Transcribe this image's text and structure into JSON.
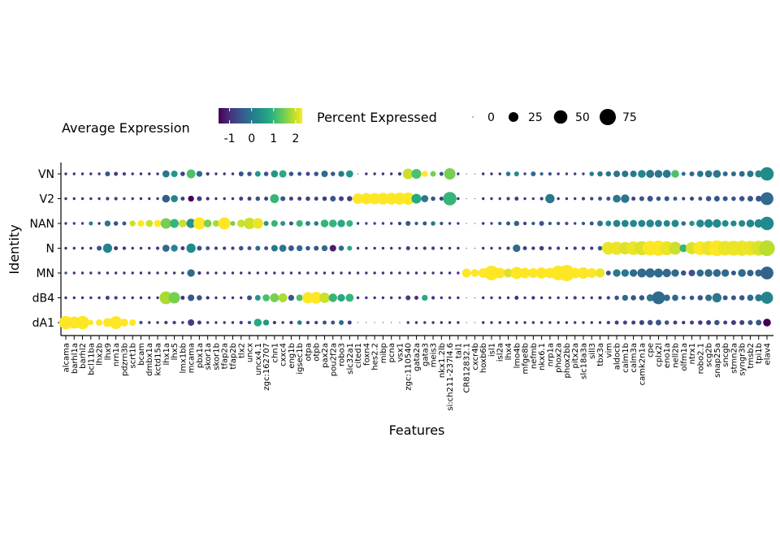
{
  "chart_data": {
    "type": "dotplot",
    "xlabel": "Features",
    "ylabel": "Identity",
    "legend_placement": "top",
    "color_legend": {
      "title": "Average Expression",
      "ticks": [
        "-1",
        "0",
        "1",
        "2"
      ],
      "tick_values": [
        -1,
        0,
        1,
        2
      ],
      "range": [
        -1.5,
        2.3
      ],
      "colors": [
        "#440154",
        "#472d7b",
        "#3b528b",
        "#2c728e",
        "#21918c",
        "#28ae80",
        "#5ec962",
        "#addc30",
        "#fde725"
      ]
    },
    "size_legend": {
      "title": "Percent Expressed",
      "ticks": [
        "0",
        "25",
        "50",
        "75"
      ],
      "tick_values": [
        0,
        25,
        50,
        75
      ]
    },
    "identities": [
      "VN",
      "V2",
      "NAN",
      "N",
      "MN",
      "dB4",
      "dA1"
    ],
    "features": [
      "alcama",
      "barhl1a",
      "barhl2",
      "bcl11ba",
      "lhx2b",
      "lhx9",
      "nrn1a",
      "pdzrn3b",
      "scrt1b",
      "bcam",
      "dmbx1a",
      "kctd15a",
      "lhx1a",
      "lhx5",
      "lmx1bb",
      "mcama",
      "pbx1a",
      "skor1a",
      "skor1b",
      "tfap2a",
      "tfap2b",
      "tlx2",
      "uncx",
      "uncx4.1",
      "zgc:162707",
      "chn1",
      "cxxc4",
      "eng1b",
      "igsec1b",
      "otpa",
      "otpb",
      "pax2a",
      "pou2f2a",
      "robo3",
      "slc32a1",
      "cited1",
      "foxn4",
      "hes2.2",
      "mibp",
      "pcna",
      "vsx1",
      "zgc:110540",
      "gata2a",
      "gata3",
      "meis3",
      "nkx1.2lb",
      "si:ch211-237l4.6",
      "tal1",
      "CR812832.1",
      "cxcr4b",
      "hoxb6b",
      "isl1",
      "isl2a",
      "lhx4",
      "lmo4b",
      "mfge8b",
      "nefmb",
      "nkx6.1",
      "nrp1a",
      "phox2a",
      "phox2bb",
      "pitx2a",
      "slc18a3a",
      "sill3",
      "tbx3a",
      "vim",
      "aldocb",
      "calm1b",
      "calm3a",
      "camk2n1a",
      "cpe",
      "cplx2l",
      "eno1a",
      "nell2b",
      "olfm1a",
      "ntrx1",
      "robo2.1",
      "scg2b",
      "snap25a",
      "sncgb",
      "stmn2a",
      "syngr3b",
      "tmsb2",
      "tpi1b",
      "elav4"
    ],
    "percent_expressed": {
      "VN": [
        1,
        1,
        1,
        1,
        1,
        5,
        3,
        2,
        1,
        1,
        1,
        1,
        12,
        10,
        4,
        20,
        8,
        2,
        1,
        1,
        1,
        5,
        4,
        7,
        4,
        12,
        13,
        4,
        3,
        3,
        4,
        10,
        4,
        8,
        12,
        0,
        1,
        1,
        1,
        1,
        2,
        30,
        25,
        8,
        7,
        3,
        35,
        1,
        0,
        0,
        1,
        1,
        1,
        4,
        5,
        1,
        5,
        2,
        2,
        1,
        1,
        1,
        1,
        4,
        6,
        6,
        10,
        10,
        10,
        15,
        16,
        15,
        16,
        15,
        3,
        5,
        9,
        12,
        15,
        5,
        5,
        7,
        10,
        12,
        50
      ],
      "V2": [
        1,
        1,
        1,
        1,
        1,
        2,
        2,
        1,
        1,
        1,
        1,
        1,
        15,
        12,
        3,
        8,
        5,
        2,
        1,
        1,
        1,
        3,
        3,
        4,
        3,
        20,
        5,
        3,
        3,
        4,
        3,
        4,
        7,
        5,
        6,
        30,
        35,
        35,
        38,
        38,
        40,
        42,
        25,
        12,
        4,
        3,
        50,
        1,
        0,
        0,
        1,
        1,
        1,
        2,
        3,
        1,
        1,
        2,
        22,
        1,
        1,
        1,
        2,
        2,
        3,
        3,
        15,
        18,
        3,
        5,
        7,
        4,
        5,
        3,
        2,
        3,
        3,
        6,
        7,
        5,
        4,
        6,
        7,
        8,
        45
      ],
      "NAN": [
        1,
        1,
        1,
        3,
        1,
        8,
        4,
        3,
        8,
        10,
        12,
        12,
        30,
        20,
        15,
        22,
        40,
        15,
        10,
        40,
        5,
        15,
        35,
        30,
        5,
        10,
        5,
        3,
        10,
        5,
        4,
        15,
        15,
        14,
        10,
        1,
        1,
        1,
        1,
        1,
        2,
        5,
        2,
        3,
        4,
        2,
        1,
        1,
        0,
        0,
        1,
        1,
        2,
        3,
        6,
        2,
        2,
        5,
        2,
        2,
        2,
        1,
        2,
        3,
        7,
        7,
        12,
        12,
        12,
        12,
        15,
        12,
        10,
        13,
        4,
        6,
        15,
        18,
        18,
        10,
        8,
        10,
        15,
        18,
        50
      ],
      "N": [
        1,
        1,
        1,
        1,
        5,
        22,
        3,
        2,
        1,
        1,
        1,
        2,
        12,
        11,
        3,
        22,
        5,
        3,
        2,
        2,
        2,
        4,
        3,
        5,
        3,
        10,
        12,
        7,
        8,
        4,
        5,
        8,
        10,
        6,
        5,
        1,
        1,
        1,
        1,
        1,
        1,
        3,
        1,
        2,
        2,
        1,
        1,
        1,
        0,
        0,
        1,
        1,
        1,
        2,
        14,
        3,
        2,
        4,
        2,
        2,
        1,
        2,
        2,
        2,
        4,
        45,
        48,
        42,
        52,
        55,
        60,
        65,
        55,
        45,
        15,
        40,
        52,
        58,
        70,
        60,
        62,
        65,
        60,
        62,
        70
      ],
      "MN": [
        1,
        1,
        1,
        1,
        1,
        1,
        1,
        1,
        1,
        1,
        1,
        1,
        1,
        1,
        1,
        14,
        2,
        1,
        1,
        1,
        1,
        1,
        1,
        1,
        1,
        1,
        1,
        1,
        1,
        1,
        1,
        1,
        1,
        1,
        1,
        1,
        1,
        1,
        1,
        1,
        1,
        1,
        1,
        1,
        1,
        1,
        1,
        1,
        20,
        15,
        24,
        60,
        30,
        20,
        40,
        30,
        25,
        35,
        28,
        60,
        75,
        30,
        36,
        25,
        22,
        5,
        14,
        14,
        14,
        20,
        22,
        20,
        18,
        14,
        6,
        10,
        12,
        15,
        15,
        14,
        5,
        15,
        10,
        12,
        45
      ],
      "dB4": [
        1,
        1,
        1,
        1,
        1,
        3,
        2,
        1,
        1,
        1,
        1,
        1,
        45,
        35,
        3,
        10,
        6,
        2,
        1,
        1,
        1,
        1,
        5,
        7,
        12,
        20,
        20,
        8,
        10,
        35,
        38,
        28,
        18,
        14,
        16,
        1,
        1,
        1,
        1,
        1,
        1,
        5,
        3,
        8,
        2,
        1,
        1,
        1,
        0,
        0,
        1,
        1,
        1,
        1,
        3,
        1,
        2,
        1,
        1,
        1,
        1,
        2,
        1,
        1,
        2,
        2,
        4,
        8,
        6,
        6,
        12,
        45,
        10,
        9,
        3,
        4,
        6,
        10,
        22,
        5,
        5,
        6,
        9,
        12,
        40
      ],
      "dA1": [
        50,
        40,
        50,
        6,
        10,
        20,
        45,
        15,
        10,
        2,
        1,
        1,
        2,
        2,
        1,
        10,
        3,
        1,
        1,
        1,
        1,
        2,
        2,
        15,
        8,
        2,
        1,
        2,
        4,
        2,
        2,
        3,
        3,
        5,
        3,
        0,
        0,
        0,
        0,
        0,
        0,
        1,
        1,
        1,
        1,
        1,
        1,
        1,
        0,
        0,
        1,
        1,
        1,
        1,
        1,
        1,
        1,
        1,
        1,
        1,
        1,
        1,
        1,
        1,
        1,
        2,
        3,
        3,
        3,
        5,
        6,
        7,
        4,
        3,
        2,
        3,
        4,
        5,
        6,
        3,
        5,
        5,
        5,
        7,
        15
      ]
    },
    "average_expression": {
      "VN": [
        -1,
        -1,
        -1,
        -1,
        -1,
        -0.5,
        -0.8,
        -0.8,
        -1,
        -1,
        -1,
        -1,
        0,
        0.5,
        -0.8,
        1.2,
        -0.2,
        -0.8,
        -1,
        -1,
        -1,
        -0.5,
        -0.5,
        0.5,
        -0.5,
        0.5,
        0.8,
        -0.5,
        -0.5,
        -0.7,
        -0.5,
        -0.2,
        -0.4,
        0,
        0.5,
        -1,
        -1,
        -1,
        -1,
        -1,
        -0.8,
        2.0,
        1.2,
        2.3,
        1.5,
        -0.5,
        1.5,
        -0.8,
        -1,
        -1,
        -1,
        -1,
        -1,
        0,
        0.3,
        -0.8,
        -0.2,
        -0.3,
        -0.5,
        -1,
        -0.8,
        -0.8,
        -0.8,
        0,
        0,
        0,
        0,
        0,
        0,
        0.2,
        0,
        0,
        0,
        1.2,
        -0.2,
        -0.2,
        0,
        0,
        0,
        -0.2,
        -0.2,
        -0.2,
        0,
        0.2,
        0.3
      ],
      "V2": [
        -1,
        -1,
        -1,
        -1,
        -1,
        -0.8,
        -0.8,
        -0.8,
        -1,
        -1,
        -1,
        -1,
        -0.4,
        0.2,
        -0.8,
        -1.5,
        -0.8,
        -1,
        -1,
        -1,
        -1,
        -0.8,
        -0.8,
        -0.5,
        -0.8,
        1.0,
        -0.5,
        -0.8,
        -0.8,
        -0.7,
        -0.8,
        -0.8,
        -0.5,
        -0.8,
        -0.8,
        2.3,
        2.3,
        2.3,
        2.3,
        2.3,
        2.3,
        2.3,
        0.8,
        0,
        -0.5,
        -0.8,
        1.0,
        -1,
        -1,
        -1,
        -1,
        -1,
        -1,
        -0.8,
        -0.8,
        -1,
        -0.8,
        -0.8,
        0,
        -1,
        -1,
        -1,
        -0.8,
        -0.8,
        -0.5,
        -0.5,
        0,
        0,
        -0.8,
        -0.5,
        -0.5,
        -0.5,
        -0.5,
        -0.5,
        -0.8,
        -0.8,
        -0.5,
        -0.5,
        -0.5,
        -0.5,
        -0.5,
        -0.5,
        -0.5,
        -0.5,
        -0.2
      ],
      "NAN": [
        -0.8,
        -0.8,
        -0.8,
        0,
        -1,
        0,
        -0.5,
        -0.5,
        2.0,
        2.3,
        2.0,
        2.3,
        1.5,
        1.0,
        2.0,
        0.5,
        2.3,
        1.5,
        1.8,
        2.3,
        1.5,
        2.0,
        2.0,
        2.2,
        0.5,
        1.0,
        0.5,
        -0.5,
        1.0,
        0.3,
        0,
        1.0,
        1.0,
        0.8,
        1.0,
        -0.8,
        -0.8,
        -0.8,
        -0.8,
        -0.8,
        -0.8,
        -0.5,
        -0.5,
        -0.5,
        0,
        -0.5,
        -0.8,
        -0.8,
        -1,
        -1,
        -1,
        -0.8,
        -0.5,
        -0.5,
        -0.3,
        -0.8,
        -0.5,
        -0.5,
        -0.5,
        -0.5,
        -0.5,
        -0.8,
        -0.5,
        -0.5,
        0,
        0.3,
        0.2,
        0.2,
        0.3,
        0.2,
        0.3,
        0.2,
        0.3,
        0.3,
        -0.2,
        0.5,
        0.3,
        0.3,
        0.3,
        0.3,
        0.3,
        0.3,
        0.2,
        0.3,
        0.3
      ],
      "N": [
        -1,
        -1,
        -1,
        -1,
        -0.5,
        0.2,
        -1,
        -1,
        -1,
        -1,
        -1,
        -0.8,
        -0.2,
        0.2,
        -0.8,
        0.3,
        -0.5,
        -0.5,
        -0.8,
        -0.8,
        -0.8,
        -0.5,
        -0.5,
        -0.2,
        -0.5,
        0,
        0,
        -0.5,
        -0.2,
        -0.5,
        -0.5,
        -0.2,
        -1.2,
        -0.2,
        0.8,
        -1,
        -1,
        -1,
        -1,
        -1,
        -1,
        -0.8,
        -1,
        -0.8,
        -0.8,
        -1,
        -1,
        -1,
        -1,
        -1,
        -1,
        -1,
        -1,
        -0.8,
        -0.2,
        -0.8,
        -1,
        -0.8,
        -0.8,
        -0.8,
        -1,
        -0.8,
        -0.8,
        -0.8,
        -0.5,
        2.2,
        2.2,
        2.1,
        2.2,
        2.1,
        2.3,
        2.3,
        2.2,
        2.0,
        1.0,
        2.1,
        2.3,
        2.2,
        2.3,
        2.2,
        2.2,
        2.2,
        2.2,
        2.1,
        1.9
      ],
      "MN": [
        -0.5,
        -1,
        -1,
        -1,
        -1,
        -1,
        -1,
        -1,
        -1,
        -1,
        -1,
        -1,
        -1,
        -1,
        -1,
        -0.2,
        -1,
        -1,
        -1,
        -1,
        -1,
        -1,
        -1,
        -1,
        -1,
        -1,
        -1,
        -1,
        -1,
        -1,
        -1,
        -1,
        -1,
        -1,
        -1,
        -1,
        -1,
        -1,
        -1,
        -1,
        -1,
        -1,
        -1,
        -1,
        -1,
        -1,
        -1,
        -1,
        2.3,
        2.3,
        2.3,
        2.3,
        2.3,
        2.1,
        2.3,
        2.3,
        2.3,
        2.3,
        2.3,
        2.3,
        2.3,
        2.3,
        2.3,
        2.3,
        2.2,
        -0.5,
        0,
        0,
        -0.2,
        -0.2,
        -0.2,
        -0.2,
        -0.2,
        -0.2,
        -0.5,
        -0.5,
        -0.2,
        -0.2,
        -0.2,
        -0.2,
        -0.5,
        -0.2,
        -0.3,
        -0.2,
        -0.3
      ],
      "dB4": [
        -1,
        -1,
        -1,
        -1,
        -1,
        -0.8,
        -0.8,
        -1,
        -1,
        -1,
        -1,
        -1,
        1.8,
        1.5,
        -1,
        -0.5,
        -0.5,
        -1,
        -1,
        -1,
        -1,
        -1,
        -0.5,
        0.5,
        1.2,
        1.5,
        1.8,
        -0.5,
        1.2,
        2.3,
        2.3,
        2.0,
        1.0,
        0.8,
        1.0,
        -1,
        -1,
        -1,
        -1,
        -1,
        -1,
        -0.8,
        -1,
        0.8,
        -1,
        -1,
        -1,
        -1,
        -1,
        -1,
        -1,
        -1,
        -1,
        -1,
        -1,
        -1,
        -1,
        -1,
        -1,
        -1,
        -1,
        -0.8,
        -1,
        -1,
        -1,
        -0.8,
        -0.5,
        -0.2,
        -0.5,
        -0.5,
        0,
        -0.2,
        -0.2,
        -0.2,
        -0.5,
        -0.5,
        -0.5,
        -0.2,
        0,
        -0.5,
        -0.5,
        -0.5,
        -0.2,
        0,
        0.2
      ],
      "dA1": [
        2.3,
        2.3,
        2.3,
        2.3,
        2.3,
        2.3,
        2.3,
        2.3,
        2.3,
        -0.5,
        -1,
        -1,
        -0.8,
        -0.8,
        -1,
        -0.8,
        -0.8,
        -1,
        -1,
        -1,
        -1,
        -0.8,
        -0.5,
        0.8,
        0.5,
        -0.8,
        -1,
        -0.8,
        0,
        -0.8,
        -0.8,
        -0.5,
        -0.5,
        -0.2,
        -0.8,
        -1,
        -1,
        -1,
        -1,
        -1,
        -1,
        -1,
        -1,
        -1,
        -1,
        -1,
        -1,
        -1,
        -1,
        -1,
        -1,
        -1,
        -1,
        -1,
        -1,
        -1,
        -1,
        -1,
        -1,
        -1,
        -1,
        -1,
        -1,
        -1,
        -1,
        -0.8,
        -0.8,
        -0.8,
        -0.8,
        -0.8,
        -0.5,
        -0.5,
        -0.5,
        -0.8,
        -1,
        -0.8,
        -0.8,
        -0.8,
        -0.5,
        -0.8,
        -0.8,
        -0.8,
        -0.5,
        -0.5,
        -1.5
      ]
    }
  }
}
